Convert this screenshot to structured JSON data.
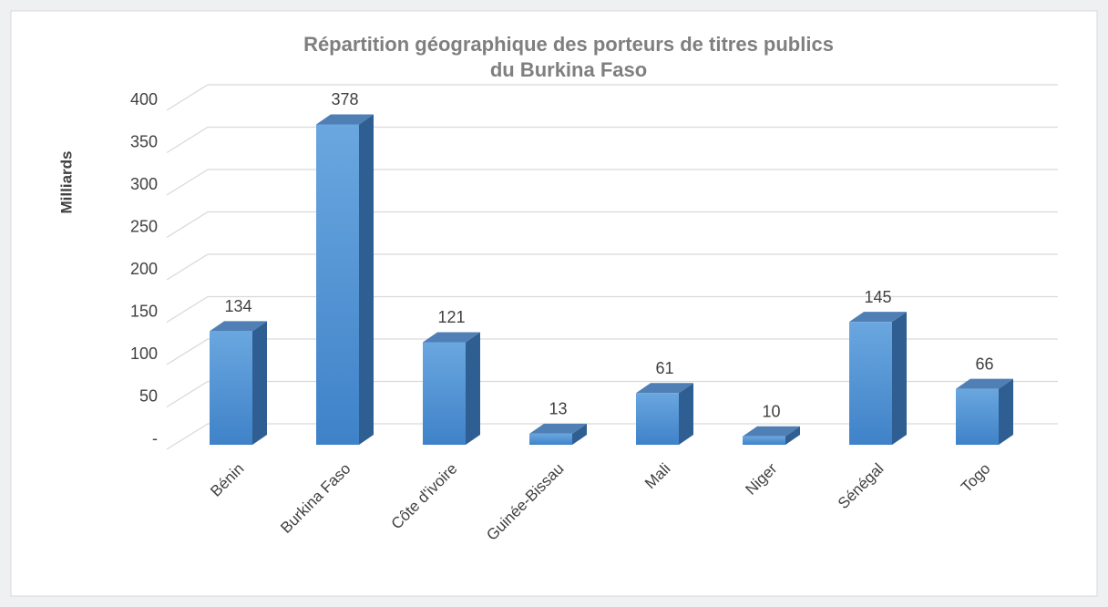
{
  "chart_data": {
    "type": "bar3d",
    "title": "Répartition géographique des porteurs de titres publics",
    "subtitle": "du Burkina Faso",
    "y_label": "Milliards",
    "categories": [
      "Bénin",
      "Burkina Faso",
      "Côte d'ivoire",
      "Guinée-Bissau",
      "Mali",
      "Niger",
      "Sénégal",
      "Togo"
    ],
    "values": [
      134,
      378,
      121,
      13,
      61,
      10,
      145,
      66
    ],
    "color": "#4a8fd4",
    "ylim": [
      0,
      400
    ],
    "yticks": [
      {
        "value": 0,
        "label": "-"
      },
      50,
      100,
      150,
      200,
      250,
      300,
      350,
      400
    ],
    "grid": true
  }
}
